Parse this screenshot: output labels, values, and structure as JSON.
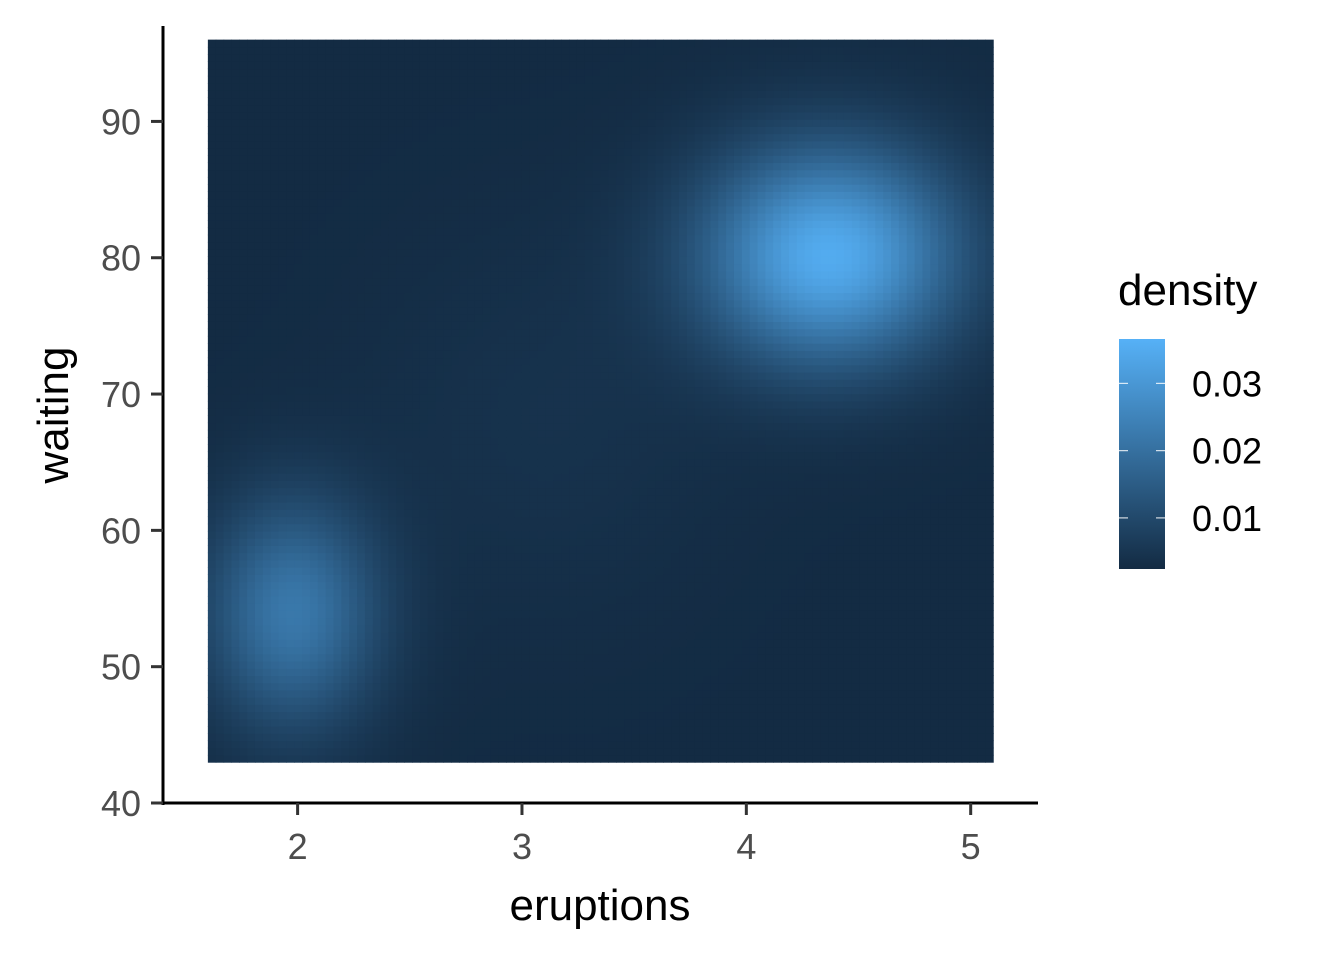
{
  "chart_data": {
    "type": "heatmap",
    "title": "",
    "xlabel": "eruptions",
    "ylabel": "waiting",
    "xlim": [
      1.4,
      5.3
    ],
    "ylim": [
      40,
      97
    ],
    "x_range": [
      1.6,
      5.1
    ],
    "y_range": [
      43,
      96
    ],
    "x_ticks": [
      2,
      3,
      4,
      5
    ],
    "y_ticks": [
      40,
      50,
      60,
      70,
      80,
      90
    ],
    "x_tick_labels": [
      "2",
      "3",
      "4",
      "5"
    ],
    "y_tick_labels": [
      "40",
      "50",
      "60",
      "70",
      "80",
      "90"
    ],
    "grid": false,
    "density_peaks": [
      {
        "eruptions": 4.37,
        "waiting": 80.2,
        "density": 0.035
      },
      {
        "eruptions": 1.98,
        "waiting": 54.0,
        "density": 0.022
      }
    ],
    "legend": {
      "title": "density",
      "position": "right",
      "range": [
        0.0024,
        0.0366
      ],
      "breaks": [
        0.01,
        0.02,
        0.03
      ],
      "break_labels": [
        "0.01",
        "0.02",
        "0.03"
      ],
      "low_color": "#132B43",
      "high_color": "#56B1F7"
    }
  }
}
